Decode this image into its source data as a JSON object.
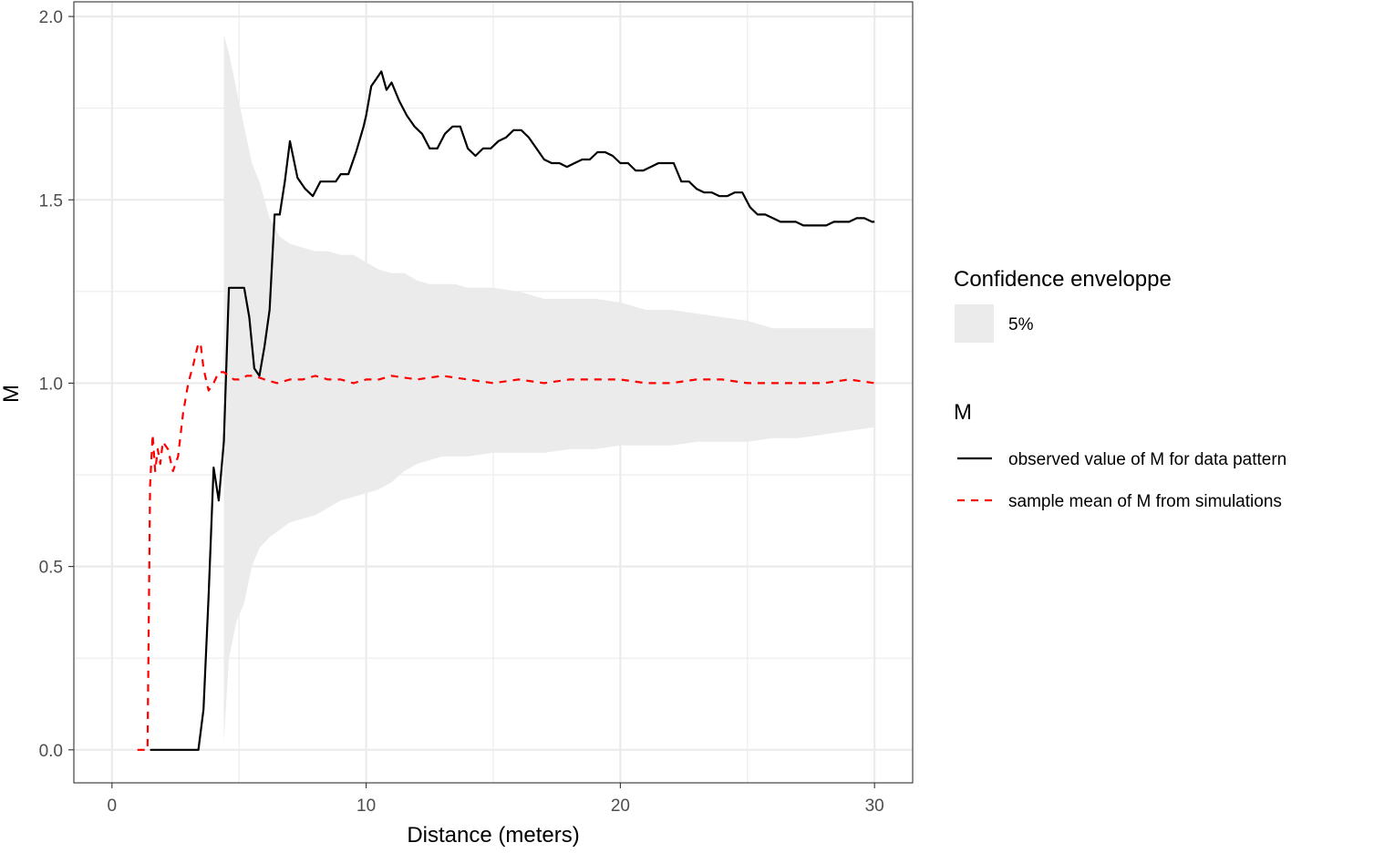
{
  "chart_data": {
    "type": "line",
    "title": "",
    "xlabel": "Distance (meters)",
    "ylabel": "M",
    "xlim": [
      -1.5,
      31.5
    ],
    "ylim": [
      -0.09,
      2.04
    ],
    "x_ticks": [
      0,
      10,
      20,
      30
    ],
    "x_tick_labels": [
      "0",
      "10",
      "20",
      "30"
    ],
    "y_ticks": [
      0.0,
      0.5,
      1.0,
      1.5,
      2.0
    ],
    "y_tick_labels": [
      "0.0",
      "0.5",
      "1.0",
      "1.5",
      "2.0"
    ],
    "grid": true,
    "legend_position": "right",
    "legend": {
      "envelope_title": "Confidence enveloppe",
      "envelope_label": "5%",
      "lines_title": "M",
      "observed_label": "observed value of M for data pattern",
      "mean_label": "sample mean of M from simulations"
    },
    "colors": {
      "observed": "#000000",
      "mean": "#ff0000",
      "envelope": "#ebebeb",
      "grid": "#ebebeb",
      "panel_border": "#333333"
    },
    "envelope": {
      "x": [
        4.4,
        4.6,
        4.9,
        5.2,
        5.5,
        5.8,
        6.2,
        6.6,
        7.0,
        7.5,
        8.0,
        8.5,
        9.0,
        9.5,
        10.0,
        10.5,
        11.0,
        11.5,
        12.0,
        12.5,
        13.0,
        13.5,
        14.0,
        15.0,
        16.0,
        17.0,
        18.0,
        19.0,
        20.0,
        21.0,
        22.0,
        23.0,
        24.0,
        25.0,
        26.0,
        27.0,
        28.0,
        29.0,
        30.0
      ],
      "upper": [
        1.95,
        1.9,
        1.8,
        1.7,
        1.6,
        1.55,
        1.45,
        1.4,
        1.38,
        1.37,
        1.36,
        1.36,
        1.35,
        1.35,
        1.33,
        1.31,
        1.3,
        1.3,
        1.28,
        1.27,
        1.27,
        1.27,
        1.26,
        1.26,
        1.25,
        1.23,
        1.23,
        1.23,
        1.22,
        1.2,
        1.2,
        1.19,
        1.18,
        1.17,
        1.15,
        1.15,
        1.15,
        1.15,
        1.15
      ],
      "lower": [
        0.02,
        0.25,
        0.35,
        0.4,
        0.5,
        0.55,
        0.58,
        0.6,
        0.62,
        0.63,
        0.64,
        0.66,
        0.68,
        0.69,
        0.7,
        0.71,
        0.73,
        0.76,
        0.78,
        0.79,
        0.8,
        0.8,
        0.8,
        0.81,
        0.81,
        0.81,
        0.82,
        0.82,
        0.83,
        0.83,
        0.83,
        0.84,
        0.84,
        0.84,
        0.85,
        0.85,
        0.86,
        0.87,
        0.88
      ]
    },
    "series": [
      {
        "name": "observed value of M for data pattern",
        "key": "observed",
        "style": "solid",
        "x": [
          1.5,
          2.0,
          2.5,
          3.0,
          3.4,
          3.6,
          3.8,
          4.0,
          4.2,
          4.4,
          4.6,
          4.8,
          5.2,
          5.4,
          5.6,
          5.8,
          6.0,
          6.2,
          6.4,
          6.6,
          6.8,
          7.0,
          7.3,
          7.6,
          7.9,
          8.2,
          8.5,
          8.8,
          9.0,
          9.3,
          9.6,
          9.9,
          10.0,
          10.2,
          10.4,
          10.6,
          10.8,
          11.0,
          11.3,
          11.6,
          11.9,
          12.2,
          12.5,
          12.8,
          13.1,
          13.4,
          13.7,
          14.0,
          14.3,
          14.6,
          14.9,
          15.2,
          15.5,
          15.8,
          16.1,
          16.4,
          16.7,
          17.0,
          17.3,
          17.6,
          17.9,
          18.2,
          18.5,
          18.8,
          19.1,
          19.4,
          19.7,
          20.0,
          20.3,
          20.6,
          20.9,
          21.2,
          21.5,
          21.8,
          22.1,
          22.4,
          22.7,
          23.0,
          23.3,
          23.6,
          23.9,
          24.2,
          24.5,
          24.8,
          25.1,
          25.4,
          25.7,
          26.0,
          26.3,
          26.6,
          26.9,
          27.2,
          27.5,
          27.8,
          28.1,
          28.4,
          28.7,
          29.0,
          29.3,
          29.6,
          29.9,
          30.0
        ],
        "y": [
          0.0,
          0.0,
          0.0,
          0.0,
          0.0,
          0.11,
          0.42,
          0.77,
          0.68,
          0.84,
          1.26,
          1.26,
          1.26,
          1.18,
          1.04,
          1.02,
          1.1,
          1.2,
          1.46,
          1.46,
          1.55,
          1.66,
          1.56,
          1.53,
          1.51,
          1.55,
          1.55,
          1.55,
          1.57,
          1.57,
          1.63,
          1.7,
          1.73,
          1.81,
          1.83,
          1.85,
          1.8,
          1.82,
          1.77,
          1.73,
          1.7,
          1.68,
          1.64,
          1.64,
          1.68,
          1.7,
          1.7,
          1.64,
          1.62,
          1.64,
          1.64,
          1.66,
          1.67,
          1.69,
          1.69,
          1.67,
          1.64,
          1.61,
          1.6,
          1.6,
          1.59,
          1.6,
          1.61,
          1.61,
          1.63,
          1.63,
          1.62,
          1.6,
          1.6,
          1.58,
          1.58,
          1.59,
          1.6,
          1.6,
          1.6,
          1.55,
          1.55,
          1.53,
          1.52,
          1.52,
          1.51,
          1.51,
          1.52,
          1.52,
          1.48,
          1.46,
          1.46,
          1.45,
          1.44,
          1.44,
          1.44,
          1.43,
          1.43,
          1.43,
          1.43,
          1.44,
          1.44,
          1.44,
          1.45,
          1.45,
          1.44,
          1.44
        ]
      },
      {
        "name": "sample mean of M from simulations",
        "key": "mean",
        "style": "dashed",
        "x": [
          1.0,
          1.4,
          1.5,
          1.6,
          1.7,
          1.8,
          1.9,
          2.0,
          2.2,
          2.4,
          2.6,
          2.8,
          3.0,
          3.2,
          3.4,
          3.5,
          3.6,
          3.8,
          4.0,
          4.2,
          4.4,
          4.6,
          4.8,
          5.0,
          5.3,
          5.6,
          6.0,
          6.5,
          7.0,
          7.5,
          8.0,
          8.5,
          9.0,
          9.5,
          10.0,
          10.5,
          11.0,
          12.0,
          13.0,
          14.0,
          15.0,
          16.0,
          17.0,
          18.0,
          19.0,
          20.0,
          21.0,
          22.0,
          23.0,
          24.0,
          25.0,
          26.0,
          27.0,
          28.0,
          29.0,
          30.0
        ],
        "y": [
          0.0,
          0.0,
          0.72,
          0.86,
          0.76,
          0.82,
          0.78,
          0.84,
          0.82,
          0.76,
          0.8,
          0.92,
          1.0,
          1.05,
          1.11,
          1.1,
          1.04,
          0.98,
          1.0,
          1.03,
          1.03,
          1.02,
          1.01,
          1.01,
          1.02,
          1.02,
          1.01,
          1.0,
          1.01,
          1.01,
          1.02,
          1.01,
          1.01,
          1.0,
          1.01,
          1.01,
          1.02,
          1.01,
          1.02,
          1.01,
          1.0,
          1.01,
          1.0,
          1.01,
          1.01,
          1.01,
          1.0,
          1.0,
          1.01,
          1.01,
          1.0,
          1.0,
          1.0,
          1.0,
          1.01,
          1.0
        ]
      }
    ]
  }
}
